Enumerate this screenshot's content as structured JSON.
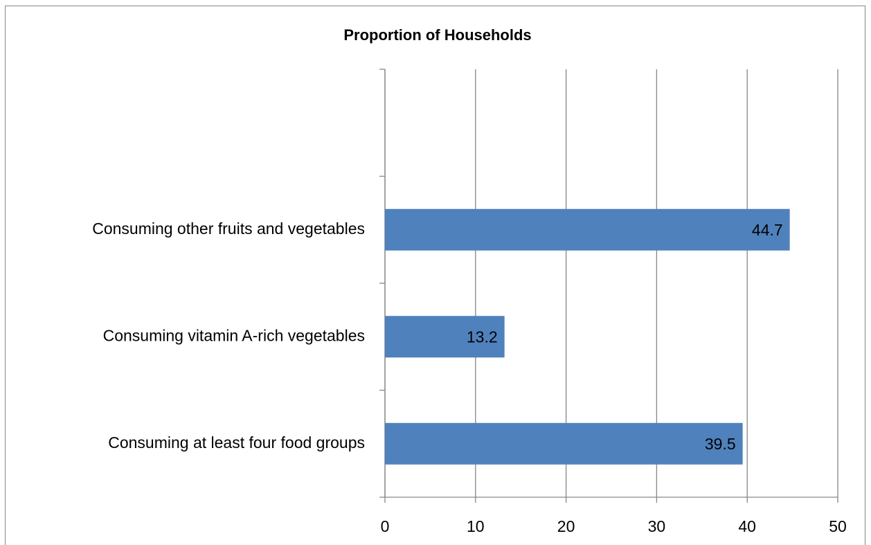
{
  "chart_data": {
    "type": "bar",
    "orientation": "horizontal",
    "title": "Proportion of Households",
    "categories": [
      null,
      "Consuming other fruits and vegetables",
      "Consuming vitamin A-rich  vegetables",
      "Consuming at least four food groups"
    ],
    "values": [
      null,
      44.7,
      13.2,
      39.5
    ],
    "color": "#4f81bd",
    "xlim": [
      0,
      50
    ],
    "xticks": [
      0,
      10,
      20,
      30,
      40,
      50
    ],
    "grid": true
  }
}
